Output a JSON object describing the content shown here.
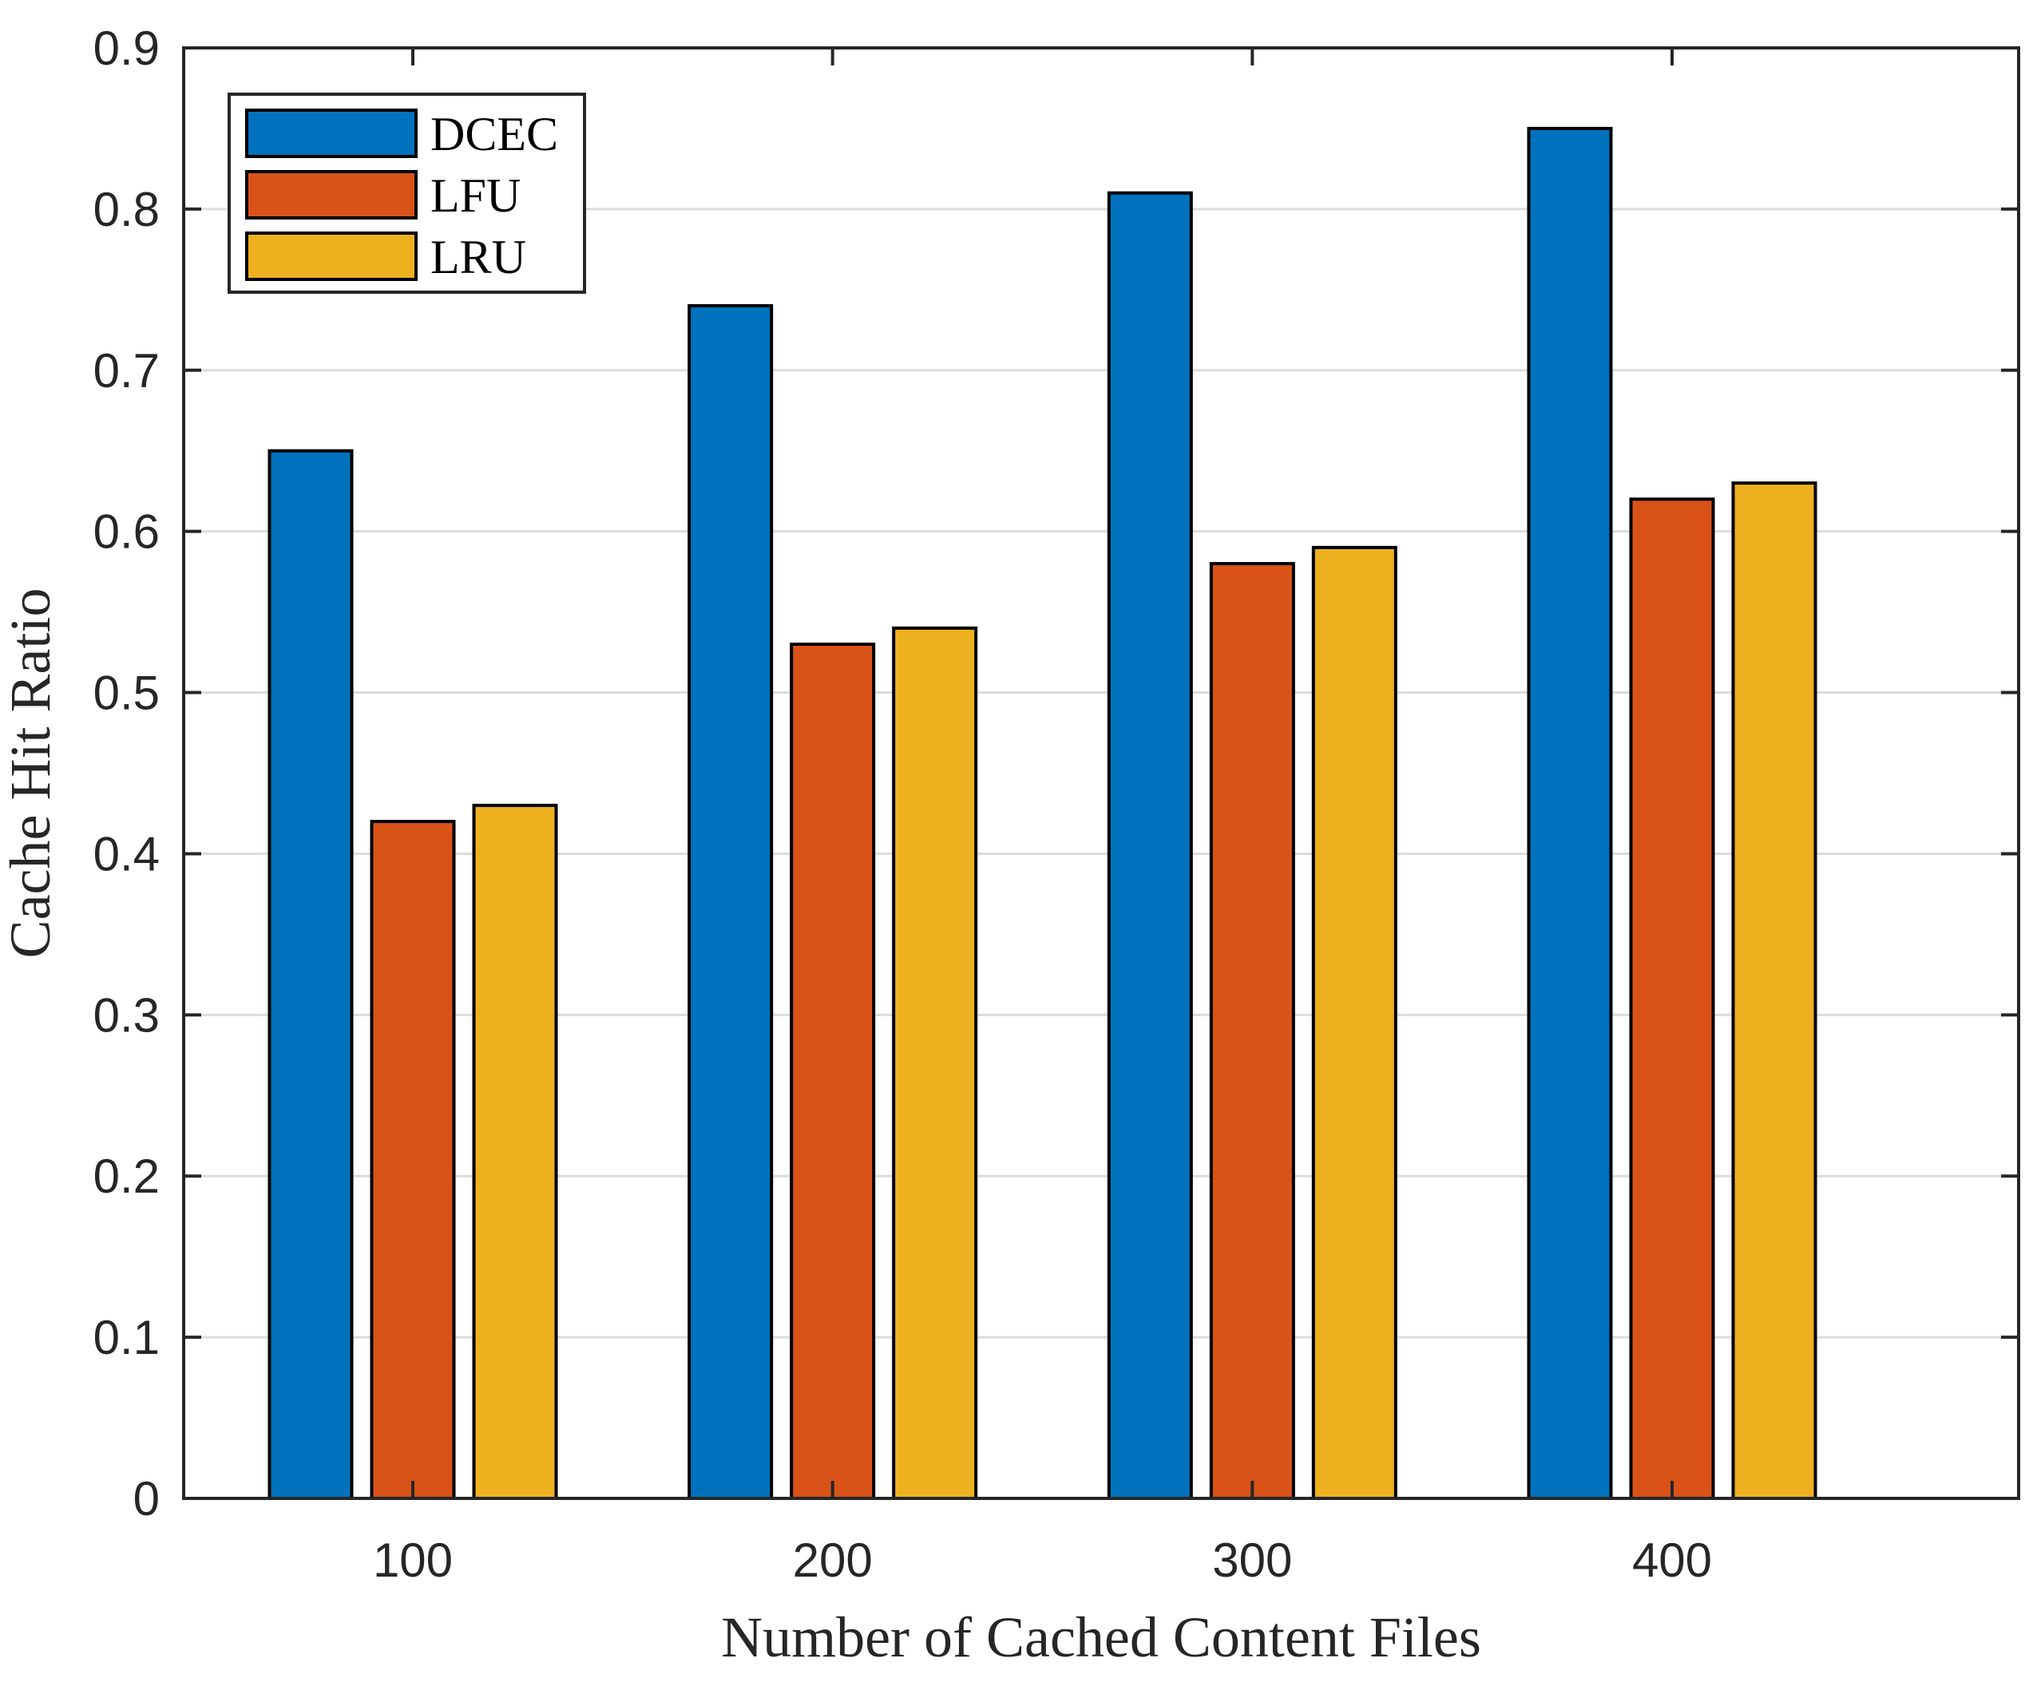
{
  "chart_data": {
    "type": "bar",
    "title": "",
    "xlabel": "Number of Cached Content Files",
    "ylabel": "Cache Hit Ratio",
    "categories": [
      "100",
      "200",
      "300",
      "400"
    ],
    "series": [
      {
        "name": "DCEC",
        "color": "#0072BD",
        "values": [
          0.65,
          0.74,
          0.81,
          0.85
        ]
      },
      {
        "name": "LFU",
        "color": "#D95319",
        "values": [
          0.42,
          0.53,
          0.58,
          0.62
        ]
      },
      {
        "name": "LRU",
        "color": "#EDB120",
        "values": [
          0.43,
          0.54,
          0.59,
          0.63
        ]
      }
    ],
    "ylim": [
      0,
      0.9
    ],
    "yticks": [
      0,
      0.1,
      0.2,
      0.3,
      0.4,
      0.5,
      0.6,
      0.7,
      0.8,
      0.9
    ],
    "ytick_labels": [
      "0",
      "0.1",
      "0.2",
      "0.3",
      "0.4",
      "0.5",
      "0.6",
      "0.7",
      "0.8",
      "0.9"
    ],
    "grid": "horizontal",
    "legend_position": "top-left"
  }
}
